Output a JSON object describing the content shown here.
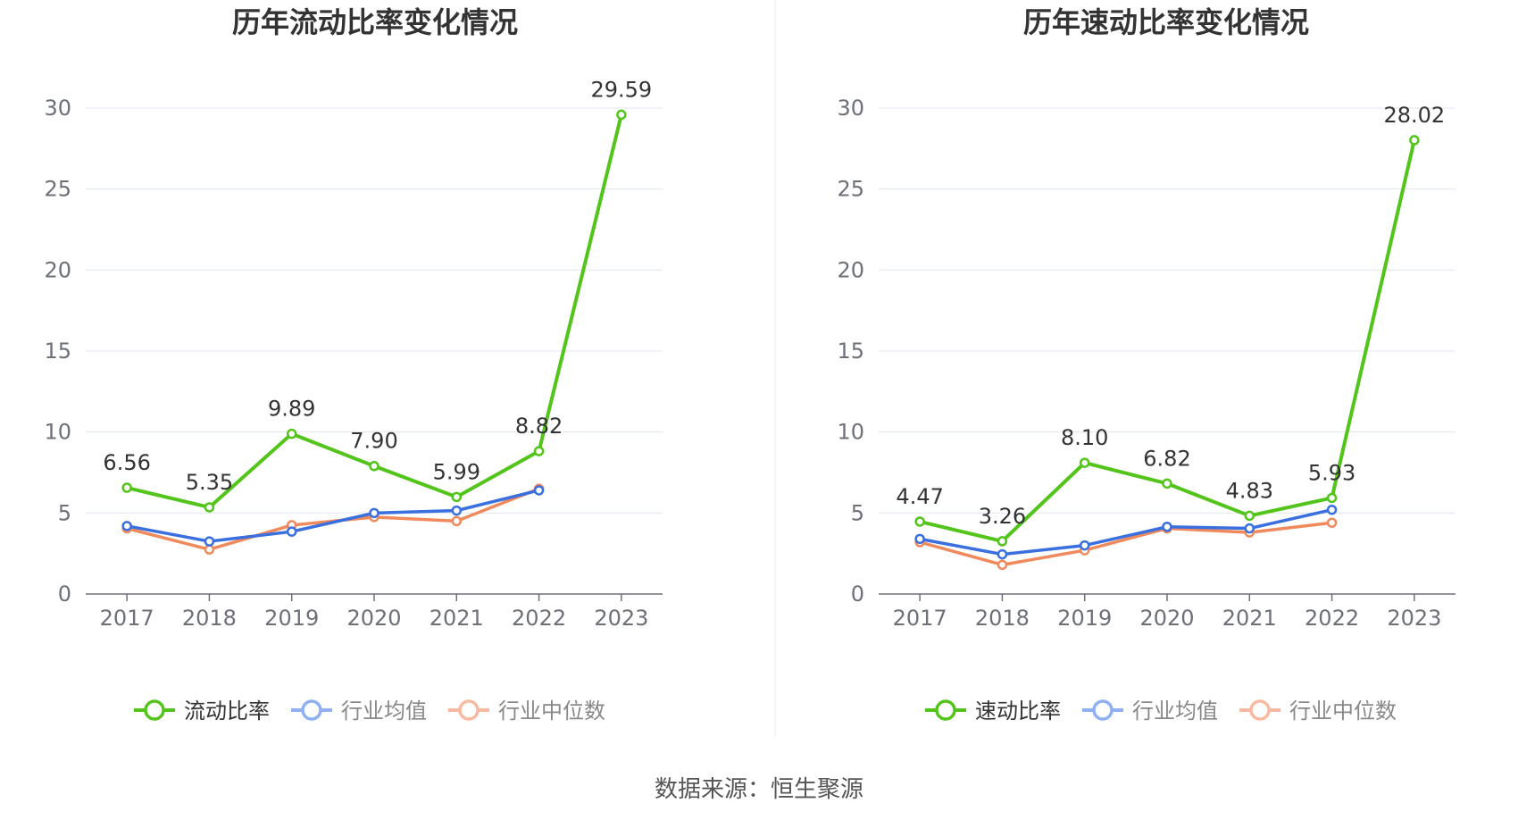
{
  "colors": {
    "main_series": "#52c41a",
    "industry_mean": "#3a6fe0",
    "industry_median": "#f08a5d",
    "legend_mean_muted": "#8fb0f2",
    "legend_median_muted": "#f8b9a0",
    "grid": "#e0e6f1",
    "axis": "#6e7079",
    "divider": "#eeeeee"
  },
  "source_text": "数据来源：恒生聚源",
  "chart_data": [
    {
      "type": "line",
      "title": "历年流动比率变化情况",
      "categories": [
        "2017",
        "2018",
        "2019",
        "2020",
        "2021",
        "2022",
        "2023"
      ],
      "ylim": [
        0,
        30
      ],
      "yticks": [
        "0",
        "5",
        "10",
        "15",
        "20",
        "25",
        "30"
      ],
      "grid": true,
      "legend_position": "bottom-center",
      "series": [
        {
          "name": "流动比率",
          "color_key": "main_series",
          "values": [
            6.56,
            5.35,
            9.89,
            7.9,
            5.99,
            8.82,
            29.59
          ],
          "labels": [
            "6.56",
            "5.35",
            "9.89",
            "7.90",
            "5.99",
            "8.82",
            "29.59"
          ]
        },
        {
          "name": "行业均值",
          "color_key": "industry_mean",
          "values": [
            4.2,
            3.25,
            3.85,
            5.0,
            5.15,
            6.4,
            null
          ]
        },
        {
          "name": "行业中位数",
          "color_key": "industry_median",
          "values": [
            4.05,
            2.75,
            4.25,
            4.75,
            4.5,
            6.5,
            null
          ]
        }
      ]
    },
    {
      "type": "line",
      "title": "历年速动比率变化情况",
      "categories": [
        "2017",
        "2018",
        "2019",
        "2020",
        "2021",
        "2022",
        "2023"
      ],
      "ylim": [
        0,
        30
      ],
      "yticks": [
        "0",
        "5",
        "10",
        "15",
        "20",
        "25",
        "30"
      ],
      "grid": true,
      "legend_position": "bottom-center",
      "series": [
        {
          "name": "速动比率",
          "color_key": "main_series",
          "values": [
            4.47,
            3.26,
            8.1,
            6.82,
            4.83,
            5.93,
            28.02
          ],
          "labels": [
            "4.47",
            "3.26",
            "8.10",
            "6.82",
            "4.83",
            "5.93",
            "28.02"
          ]
        },
        {
          "name": "行业均值",
          "color_key": "industry_mean",
          "values": [
            3.4,
            2.45,
            3.0,
            4.15,
            4.05,
            5.2,
            null
          ]
        },
        {
          "name": "行业中位数",
          "color_key": "industry_median",
          "values": [
            3.2,
            1.8,
            2.7,
            4.05,
            3.8,
            4.4,
            null
          ]
        }
      ]
    }
  ]
}
